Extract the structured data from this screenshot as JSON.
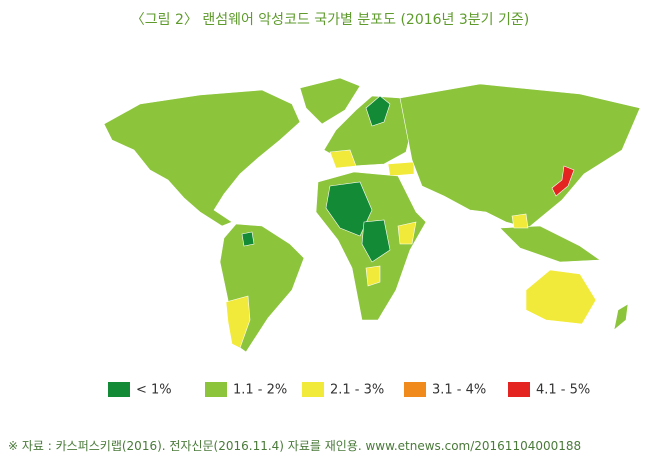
{
  "title": "〈그림 2〉 랜섬웨어 악성코드 국가별 분포도 (2016년 3분기 기준)",
  "legend": [
    {
      "label": "< 1%",
      "color": "#138a36"
    },
    {
      "label": "1.1 - 2%",
      "color": "#8cc43c"
    },
    {
      "label": "2.1 - 3%",
      "color": "#f2ea3a"
    },
    {
      "label": "3.1 - 4%",
      "color": "#f08a1c"
    },
    {
      "label": "4.1 - 5%",
      "color": "#e32421"
    }
  ],
  "source": "※ 자료 : 카스퍼스키랩(2016). 전자신문(2016.11.4) 자료를 재인용. www.etnews.com/20161104000188"
}
